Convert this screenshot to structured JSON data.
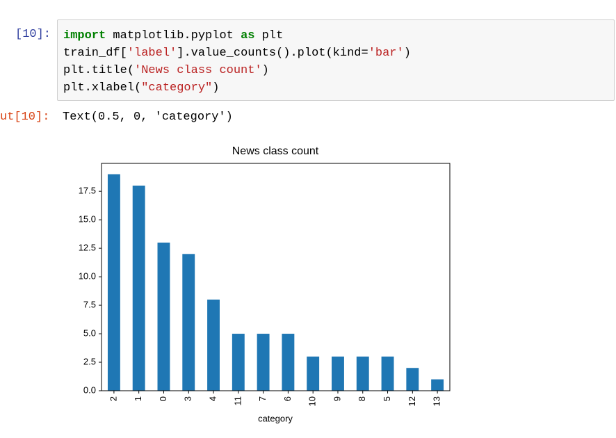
{
  "prompts": {
    "input": "[10]:",
    "output": "ut[10]:"
  },
  "code": {
    "lines": [
      [
        "import",
        " matplotlib.pyplot ",
        "as",
        " plt"
      ],
      [
        "train_df[",
        "'label'",
        "].value_counts().plot(kind=",
        "'bar'",
        ")"
      ],
      [
        "plt.title(",
        "'News class count'",
        ")"
      ],
      [
        "plt.xlabel(",
        "\"category\"",
        ")"
      ]
    ]
  },
  "output_text": "Text(0.5, 0, 'category')",
  "chart_data": {
    "type": "bar",
    "title": "News class count",
    "x_label": "category",
    "categories": [
      "2",
      "1",
      "0",
      "3",
      "4",
      "11",
      "7",
      "6",
      "10",
      "9",
      "8",
      "5",
      "12",
      "13"
    ],
    "values": [
      19,
      18,
      13,
      12,
      8,
      5,
      5,
      5,
      3,
      3,
      3,
      3,
      2,
      1
    ],
    "color": "#1f77b4",
    "ylim": [
      0,
      19.95
    ],
    "yticks": [
      {
        "value": 0,
        "label": "0.0"
      },
      2.5,
      {
        "value": 5,
        "label": "5.0"
      },
      7.5,
      {
        "value": 10,
        "label": "10.0"
      },
      12.5,
      {
        "value": 15,
        "label": "15.0"
      },
      17.5
    ],
    "grid": false
  }
}
